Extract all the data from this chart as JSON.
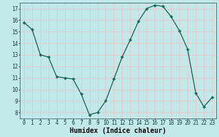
{
  "x": [
    0,
    1,
    2,
    3,
    4,
    5,
    6,
    7,
    8,
    9,
    10,
    11,
    12,
    13,
    14,
    15,
    16,
    17,
    18,
    19,
    20,
    21,
    22,
    23
  ],
  "y": [
    15.8,
    15.2,
    13.0,
    12.8,
    11.1,
    11.0,
    10.9,
    9.6,
    7.8,
    8.0,
    9.0,
    10.9,
    12.8,
    14.3,
    15.9,
    17.0,
    17.3,
    17.2,
    16.3,
    15.1,
    13.5,
    9.7,
    8.5,
    9.3
  ],
  "line_color": "#1a6b5a",
  "marker": "D",
  "marker_size": 2.0,
  "bg_color": "#c2e8e8",
  "grid_color": "#e8c8c8",
  "xlabel": "Humidex (Indice chaleur)",
  "ylim_min": 7.5,
  "ylim_max": 17.5,
  "yticks": [
    8,
    9,
    10,
    11,
    12,
    13,
    14,
    15,
    16,
    17
  ],
  "xticks": [
    0,
    1,
    2,
    3,
    4,
    5,
    6,
    7,
    8,
    9,
    10,
    11,
    12,
    13,
    14,
    15,
    16,
    17,
    18,
    19,
    20,
    21,
    22,
    23
  ],
  "xlabel_fontsize": 7,
  "tick_fontsize": 5.5,
  "line_width": 1.0
}
